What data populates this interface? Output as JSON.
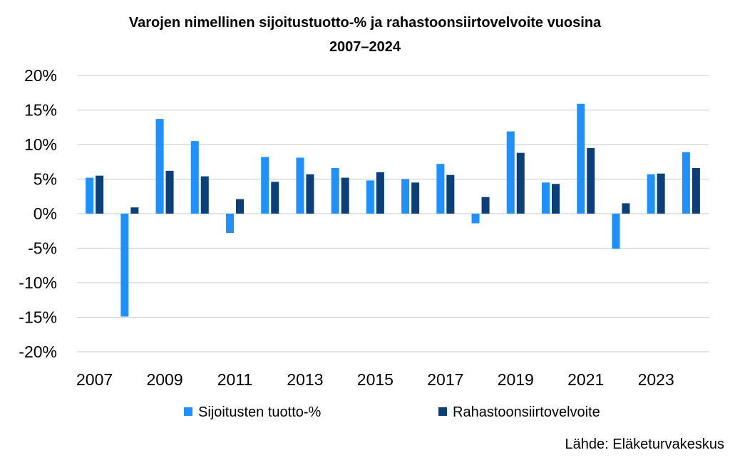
{
  "chart_data": {
    "type": "bar",
    "title_line1": "Varojen nimellinen sijoitustuotto-% ja rahastoonsiirtovelvoite vuosina",
    "title_line2": "2007–2024",
    "source": "Lähde: Eläketurvakeskus",
    "categories": [
      "2007",
      "2008",
      "2009",
      "2010",
      "2011",
      "2012",
      "2013",
      "2014",
      "2015",
      "2016",
      "2017",
      "2018",
      "2019",
      "2020",
      "2021",
      "2022",
      "2023",
      "2024"
    ],
    "x_tick_labels": [
      "2007",
      "2009",
      "2011",
      "2013",
      "2015",
      "2017",
      "2019",
      "2021",
      "2023"
    ],
    "y_ticks": [
      20,
      15,
      10,
      5,
      0,
      -5,
      -10,
      -15,
      -20
    ],
    "y_tick_labels": [
      "20%",
      "15%",
      "10%",
      "5%",
      "0%",
      "-5%",
      "-10%",
      "-15%",
      "-20%"
    ],
    "ylim": [
      -20,
      20
    ],
    "grid": true,
    "legend_position": "bottom",
    "series": [
      {
        "name": "Sijoitusten tuotto-%",
        "color": "#1e90ff",
        "values": [
          5.2,
          -14.9,
          13.7,
          10.5,
          -2.8,
          8.2,
          8.1,
          6.6,
          4.8,
          5.0,
          7.2,
          -1.4,
          11.9,
          4.5,
          15.9,
          -5.1,
          5.7,
          8.9
        ]
      },
      {
        "name": "Rahastoonsiirtovelvoite",
        "color": "#0a3f7a",
        "values": [
          5.5,
          0.9,
          6.2,
          5.4,
          2.1,
          4.6,
          5.7,
          5.2,
          6.0,
          4.5,
          5.6,
          2.4,
          8.8,
          4.3,
          9.5,
          1.5,
          5.8,
          6.6
        ]
      }
    ]
  }
}
